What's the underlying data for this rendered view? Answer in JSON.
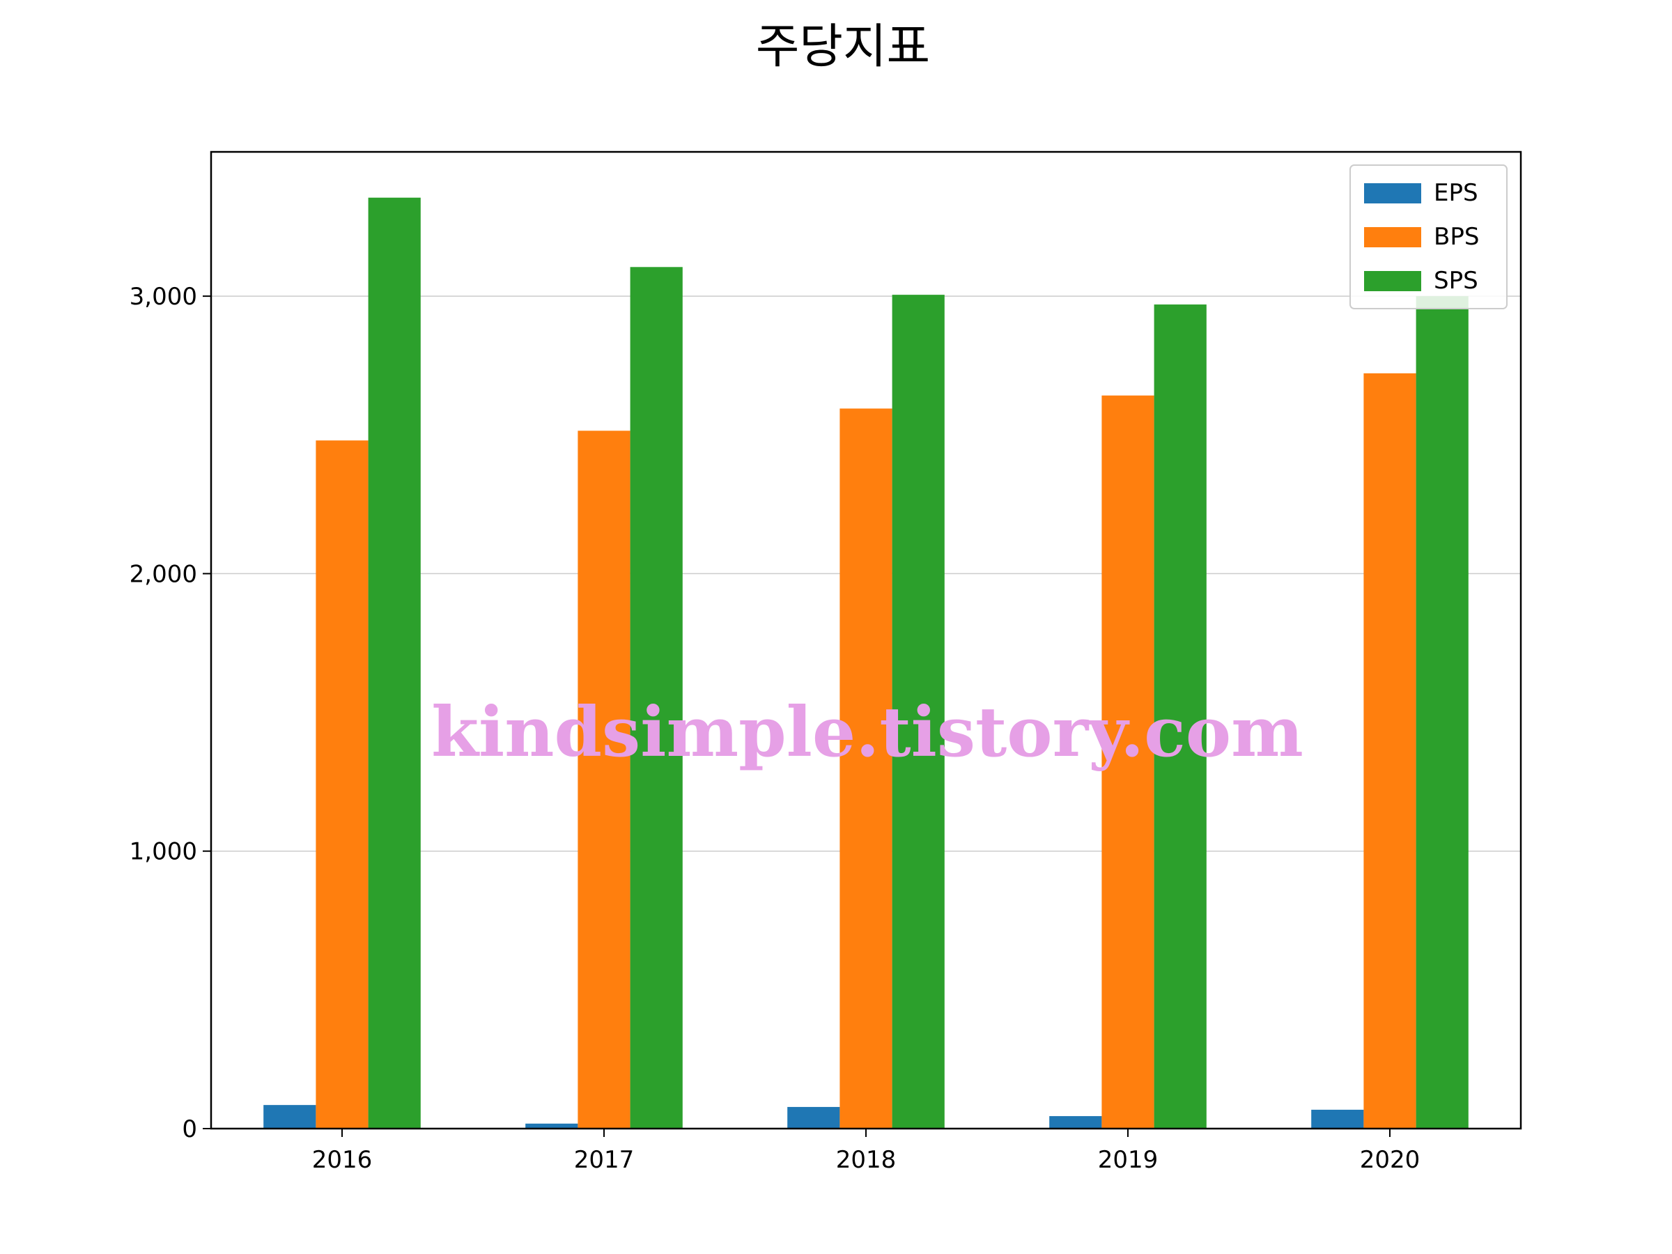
{
  "chart_data": {
    "type": "bar",
    "title": "주당지표",
    "xlabel": "",
    "ylabel": "",
    "categories": [
      "2016",
      "2017",
      "2018",
      "2019",
      "2020"
    ],
    "series": [
      {
        "name": "EPS",
        "color": "#1f77b4",
        "values": [
          85,
          18,
          78,
          45,
          68
        ]
      },
      {
        "name": "BPS",
        "color": "#ff7f0e",
        "values": [
          2480,
          2515,
          2595,
          2642,
          2722
        ]
      },
      {
        "name": "SPS",
        "color": "#2ca02c",
        "values": [
          3355,
          3105,
          3005,
          2970,
          3000
        ]
      }
    ],
    "ylim": [
      0,
      3520
    ],
    "yticks": [
      0,
      1000,
      2000,
      3000
    ],
    "ytick_labels": [
      "0",
      "1,000",
      "2,000",
      "3,000"
    ],
    "grid": "y",
    "legend_position": "top-right"
  },
  "watermark": "kindsimple.tistory.com"
}
